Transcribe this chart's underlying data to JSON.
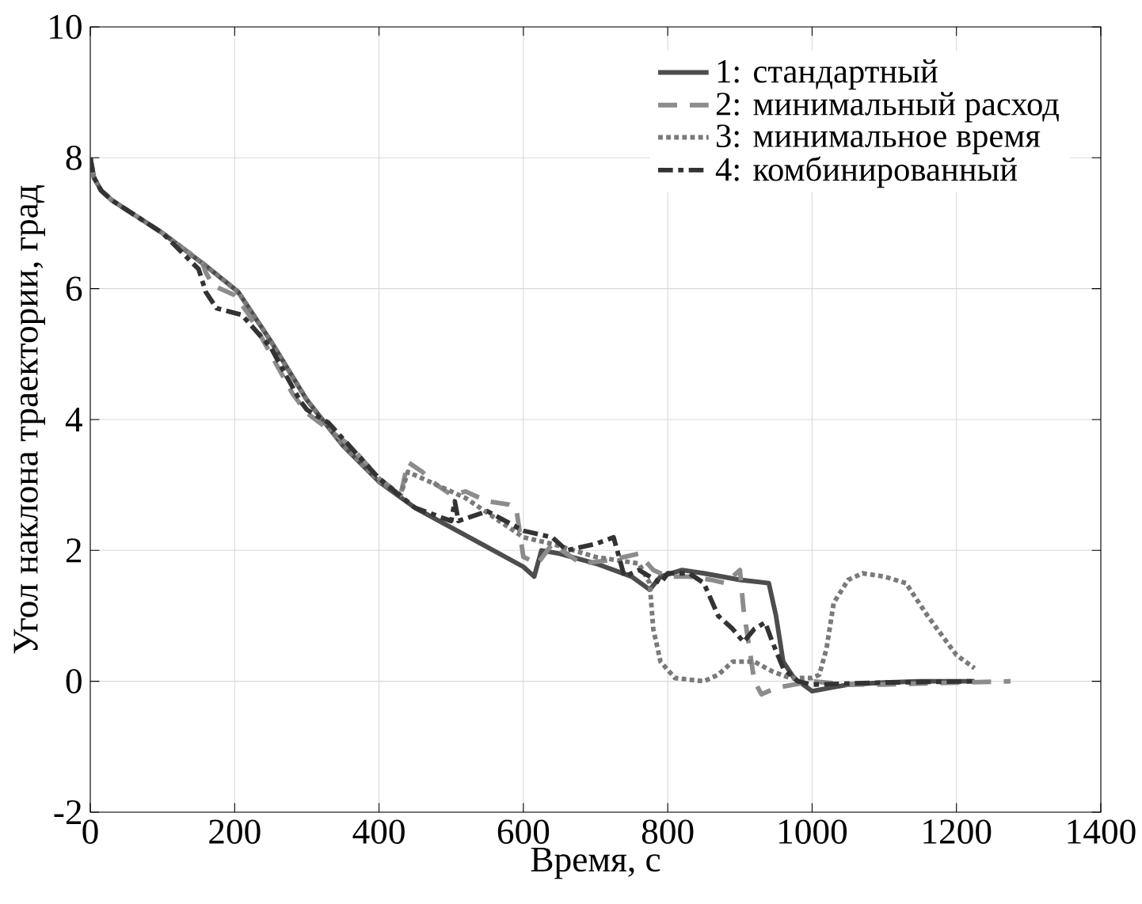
{
  "chart_data": {
    "type": "line",
    "xlabel": "Время, с",
    "ylabel": "Угол наклона траектории, град",
    "xlim": [
      0,
      1400
    ],
    "ylim": [
      -2,
      10
    ],
    "xticks": [
      0,
      200,
      400,
      600,
      800,
      1000,
      1200,
      1400
    ],
    "yticks": [
      -2,
      0,
      2,
      4,
      6,
      8,
      10
    ],
    "grid": true,
    "legend": "top right",
    "series": [
      {
        "name": "1: стандартный",
        "color": "#4d4d4d",
        "line_style": "solid",
        "x": [
          0,
          5,
          15,
          30,
          100,
          160,
          205,
          250,
          300,
          350,
          400,
          450,
          500,
          550,
          600,
          615,
          625,
          650,
          700,
          750,
          775,
          790,
          820,
          850,
          900,
          940,
          950,
          960,
          975,
          1000,
          1025,
          1050,
          1100,
          1150,
          1225
        ],
        "values": [
          8.0,
          7.7,
          7.5,
          7.35,
          6.85,
          6.35,
          5.95,
          5.2,
          4.3,
          3.6,
          3.05,
          2.65,
          2.35,
          2.05,
          1.75,
          1.6,
          2.0,
          1.95,
          1.8,
          1.6,
          1.4,
          1.6,
          1.7,
          1.65,
          1.55,
          1.5,
          1.0,
          0.3,
          0.05,
          -0.15,
          -0.1,
          -0.05,
          -0.02,
          0.0,
          0.0
        ]
      },
      {
        "name": "2: минимальный расход",
        "color": "#8c8c8c",
        "line_style": "dashed",
        "x": [
          0,
          5,
          15,
          30,
          100,
          155,
          160,
          170,
          200,
          220,
          280,
          300,
          330,
          360,
          400,
          430,
          440,
          460,
          480,
          500,
          520,
          550,
          580,
          590,
          600,
          620,
          640,
          680,
          720,
          760,
          780,
          800,
          830,
          860,
          880,
          900,
          905,
          920,
          930,
          950,
          1000,
          1050,
          1100,
          1200,
          1275
        ],
        "values": [
          8.0,
          7.7,
          7.5,
          7.35,
          6.85,
          6.4,
          6.25,
          6.05,
          5.9,
          5.6,
          4.4,
          4.1,
          3.85,
          3.6,
          3.1,
          2.85,
          3.35,
          3.2,
          3.0,
          2.85,
          2.9,
          2.75,
          2.7,
          2.65,
          1.9,
          1.8,
          2.1,
          1.8,
          1.85,
          1.95,
          1.7,
          1.6,
          1.6,
          1.55,
          1.5,
          1.7,
          1.1,
          0.0,
          -0.2,
          -0.1,
          0.0,
          -0.05,
          -0.05,
          -0.02,
          0.0
        ]
      },
      {
        "name": "3: минимальное время",
        "color": "#7a7a7a",
        "line_style": "dotted",
        "x": [
          0,
          5,
          15,
          30,
          100,
          160,
          205,
          250,
          300,
          350,
          400,
          430,
          440,
          480,
          520,
          560,
          600,
          640,
          700,
          760,
          775,
          780,
          790,
          810,
          850,
          870,
          890,
          920,
          945,
          970,
          1000,
          1010,
          1020,
          1030,
          1050,
          1070,
          1100,
          1130,
          1160,
          1200,
          1225
        ],
        "values": [
          8.0,
          7.7,
          7.5,
          7.35,
          6.85,
          6.35,
          5.95,
          5.2,
          4.3,
          3.6,
          3.05,
          2.85,
          3.2,
          3.0,
          2.8,
          2.5,
          2.2,
          2.1,
          1.9,
          1.8,
          1.5,
          0.8,
          0.3,
          0.05,
          0.0,
          0.1,
          0.3,
          0.3,
          0.15,
          0.05,
          0.05,
          0.1,
          0.5,
          1.2,
          1.55,
          1.65,
          1.6,
          1.5,
          1.0,
          0.4,
          0.2
        ]
      },
      {
        "name": "4: комбинированный",
        "color": "#333333",
        "line_style": "dashdot",
        "x": [
          0,
          5,
          15,
          30,
          100,
          150,
          160,
          175,
          210,
          250,
          290,
          300,
          330,
          400,
          450,
          500,
          505,
          510,
          550,
          600,
          640,
          660,
          700,
          725,
          740,
          760,
          790,
          800,
          830,
          850,
          870,
          890,
          905,
          920,
          935,
          945,
          960,
          980,
          1000,
          1100,
          1225
        ],
        "values": [
          8.0,
          7.7,
          7.5,
          7.35,
          6.85,
          6.3,
          5.95,
          5.7,
          5.6,
          5.1,
          4.3,
          4.15,
          3.95,
          3.1,
          2.65,
          2.45,
          2.75,
          2.45,
          2.6,
          2.3,
          2.2,
          2.0,
          2.1,
          2.2,
          1.6,
          1.7,
          1.5,
          1.65,
          1.65,
          1.5,
          1.0,
          0.8,
          0.6,
          0.8,
          0.9,
          0.6,
          0.2,
          0.0,
          -0.05,
          -0.02,
          0.0
        ]
      }
    ]
  }
}
